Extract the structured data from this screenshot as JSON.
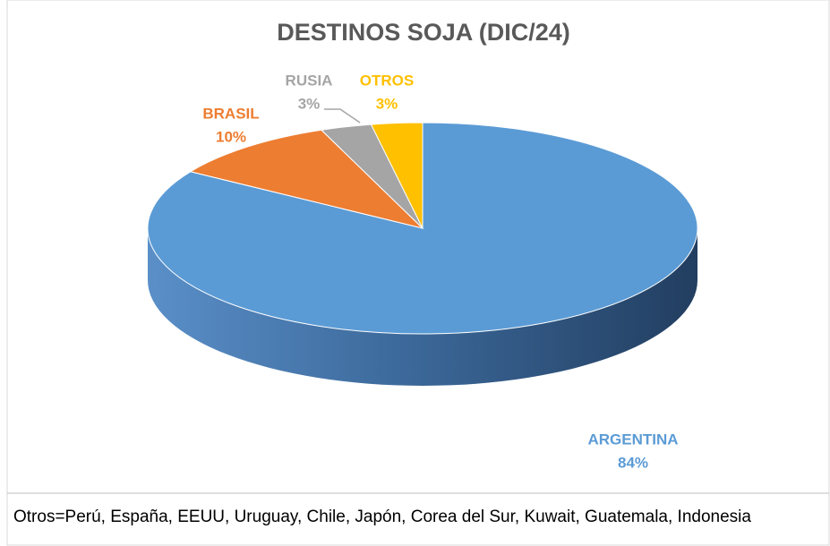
{
  "chart_data": {
    "type": "pie",
    "title": "DESTINOS SOJA (DIC/24)",
    "categories": [
      "ARGENTINA",
      "BRASIL",
      "RUSIA",
      "OTROS"
    ],
    "values": [
      84,
      10,
      3,
      3
    ],
    "value_labels": [
      "84%",
      "10%",
      "3%",
      "3%"
    ],
    "colors": [
      "#5b9bd5",
      "#ed7d31",
      "#a5a5a5",
      "#ffc000"
    ],
    "note": "Otros=Perú, España, EEUU, Uruguay, Chile, Japón, Corea del Sur, Kuwait, Guatemala, Indonesia"
  }
}
